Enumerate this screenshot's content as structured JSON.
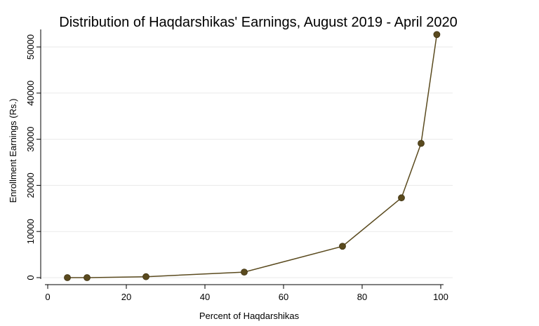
{
  "chart_data": {
    "type": "line",
    "title": "Distribution of Haqdarshikas' Earnings, August 2019 - April 2020",
    "xlabel": "Percent of Haqdarshikas",
    "ylabel": "Enrollment Earnings (Rs.)",
    "xlim": [
      0,
      100
    ],
    "ylim": [
      0,
      52000
    ],
    "x_ticks": [
      0,
      20,
      40,
      60,
      80,
      100
    ],
    "y_ticks": [
      0,
      10000,
      20000,
      30000,
      40000,
      50000
    ],
    "grid": true,
    "legend": "none",
    "series": [
      {
        "color": "#5a4a1e",
        "points": [
          {
            "x": 5,
            "y": 0
          },
          {
            "x": 10,
            "y": 0
          },
          {
            "x": 25,
            "y": 200
          },
          {
            "x": 50,
            "y": 1200
          },
          {
            "x": 75,
            "y": 6800
          },
          {
            "x": 90,
            "y": 17300
          },
          {
            "x": 95,
            "y": 29100
          },
          {
            "x": 99,
            "y": 52700
          }
        ]
      }
    ]
  }
}
